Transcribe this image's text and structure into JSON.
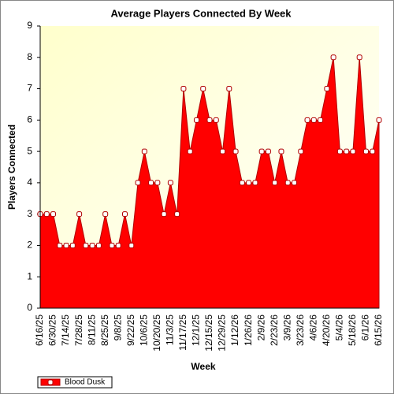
{
  "chart_data": {
    "type": "area",
    "title": "Average Players Connected By Week",
    "x_label": "Week",
    "y_label": "Players Connected",
    "categories": [
      "6/16/25",
      null,
      "6/30/25",
      null,
      "7/14/25",
      null,
      "7/28/25",
      null,
      "8/11/25",
      null,
      "8/25/25",
      null,
      "9/8/25",
      null,
      "9/22/25",
      null,
      "10/6/25",
      null,
      "10/20/25",
      null,
      "11/3/25",
      null,
      "11/17/25",
      null,
      "12/1/25",
      null,
      "12/15/25",
      null,
      "12/29/25",
      null,
      "1/12/26",
      null,
      "1/26/26",
      null,
      "2/9/26",
      null,
      "2/23/26",
      null,
      "3/9/26",
      null,
      "3/23/26",
      null,
      "4/6/26",
      null,
      "4/20/26",
      null,
      "5/4/26",
      null,
      "5/18/26",
      null,
      "6/1/26",
      null,
      "6/15/26"
    ],
    "series": [
      {
        "name": "Blood Dusk",
        "color": "#ff0000",
        "values": [
          3,
          3,
          3,
          2,
          2,
          2,
          3,
          2,
          2,
          2,
          3,
          2,
          2,
          3,
          2,
          4,
          5,
          4,
          4,
          3,
          4,
          3,
          7,
          5,
          6,
          7,
          6,
          6,
          5,
          7,
          5,
          4,
          4,
          4,
          5,
          5,
          4,
          5,
          4,
          4,
          5,
          6,
          6,
          6,
          7,
          8,
          5,
          5,
          5,
          8,
          5,
          5,
          6
        ]
      }
    ],
    "ylim": [
      0,
      9
    ],
    "yticks": [
      0,
      1,
      2,
      3,
      4,
      5,
      6,
      7,
      8,
      9
    ],
    "grid": false,
    "legend": "bottom-left"
  }
}
